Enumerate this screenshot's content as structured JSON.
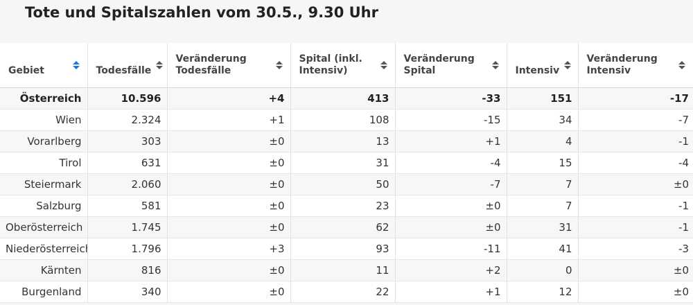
{
  "title": "Tote und Spitalszahlen vom 30.5., 9.30 Uhr",
  "columns": [
    {
      "label": "Gebiet",
      "sort_state": "active"
    },
    {
      "label": "Todesfälle",
      "sort_state": "neutral"
    },
    {
      "label": "Veränderung\nTodesfälle",
      "sort_state": "neutral"
    },
    {
      "label": "Spital (inkl.\nIntensiv)",
      "sort_state": "neutral"
    },
    {
      "label": "Veränderung\nSpital",
      "sort_state": "neutral"
    },
    {
      "label": "Intensiv",
      "sort_state": "neutral"
    },
    {
      "label": "Veränderung\nIntensiv",
      "sort_state": "neutral"
    }
  ],
  "rows": [
    {
      "gebiet": "Österreich",
      "todesfaelle": "10.596",
      "veraenderung_todesfaelle": "+4",
      "spital": "413",
      "veraenderung_spital": "-33",
      "intensiv": "151",
      "veraenderung_intensiv": "-17",
      "bold": true
    },
    {
      "gebiet": "Wien",
      "todesfaelle": "2.324",
      "veraenderung_todesfaelle": "+1",
      "spital": "108",
      "veraenderung_spital": "-15",
      "intensiv": "34",
      "veraenderung_intensiv": "-7",
      "bold": false
    },
    {
      "gebiet": "Vorarlberg",
      "todesfaelle": "303",
      "veraenderung_todesfaelle": "±0",
      "spital": "13",
      "veraenderung_spital": "+1",
      "intensiv": "4",
      "veraenderung_intensiv": "-1",
      "bold": false
    },
    {
      "gebiet": "Tirol",
      "todesfaelle": "631",
      "veraenderung_todesfaelle": "±0",
      "spital": "31",
      "veraenderung_spital": "-4",
      "intensiv": "15",
      "veraenderung_intensiv": "-4",
      "bold": false
    },
    {
      "gebiet": "Steiermark",
      "todesfaelle": "2.060",
      "veraenderung_todesfaelle": "±0",
      "spital": "50",
      "veraenderung_spital": "-7",
      "intensiv": "7",
      "veraenderung_intensiv": "±0",
      "bold": false
    },
    {
      "gebiet": "Salzburg",
      "todesfaelle": "581",
      "veraenderung_todesfaelle": "±0",
      "spital": "23",
      "veraenderung_spital": "±0",
      "intensiv": "7",
      "veraenderung_intensiv": "-1",
      "bold": false
    },
    {
      "gebiet": "Oberösterreich",
      "todesfaelle": "1.745",
      "veraenderung_todesfaelle": "±0",
      "spital": "62",
      "veraenderung_spital": "±0",
      "intensiv": "31",
      "veraenderung_intensiv": "-1",
      "bold": false
    },
    {
      "gebiet": "Niederösterreich",
      "todesfaelle": "1.796",
      "veraenderung_todesfaelle": "+3",
      "spital": "93",
      "veraenderung_spital": "-11",
      "intensiv": "41",
      "veraenderung_intensiv": "-3",
      "bold": false
    },
    {
      "gebiet": "Kärnten",
      "todesfaelle": "816",
      "veraenderung_todesfaelle": "±0",
      "spital": "11",
      "veraenderung_spital": "+2",
      "intensiv": "0",
      "veraenderung_intensiv": "±0",
      "bold": false
    },
    {
      "gebiet": "Burgenland",
      "todesfaelle": "340",
      "veraenderung_todesfaelle": "±0",
      "spital": "22",
      "veraenderung_spital": "+1",
      "intensiv": "12",
      "veraenderung_intensiv": "±0",
      "bold": false
    }
  ],
  "colors": {
    "sort_active": "#1a73e8",
    "sort_neutral": "#555555",
    "row_alt": "#f7f7f7"
  }
}
